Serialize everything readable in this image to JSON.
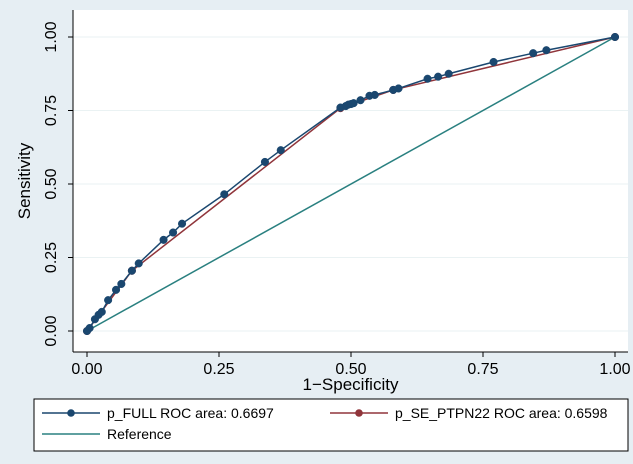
{
  "chart_data": {
    "type": "line",
    "xlabel": "1−Specificity",
    "ylabel": "Sensitivity",
    "xlim": [
      0,
      1
    ],
    "ylim": [
      0,
      1
    ],
    "x_ticks": [
      "0.00",
      "0.25",
      "0.50",
      "0.75",
      "1.00"
    ],
    "y_ticks": [
      "0.00",
      "0.25",
      "0.50",
      "0.75",
      "1.00"
    ],
    "grid": "horizontal",
    "legend_position": "bottom",
    "series": [
      {
        "name": "p_FULL ROC area: 0.6697",
        "color": "#1a476f",
        "marker": "circle",
        "points": [
          [
            0.0,
            0.0
          ],
          [
            0.005,
            0.01
          ],
          [
            0.015,
            0.04
          ],
          [
            0.022,
            0.055
          ],
          [
            0.028,
            0.065
          ],
          [
            0.04,
            0.105
          ],
          [
            0.055,
            0.14
          ],
          [
            0.065,
            0.16
          ],
          [
            0.085,
            0.205
          ],
          [
            0.098,
            0.23
          ],
          [
            0.145,
            0.31
          ],
          [
            0.163,
            0.335
          ],
          [
            0.18,
            0.365
          ],
          [
            0.26,
            0.465
          ],
          [
            0.337,
            0.575
          ],
          [
            0.367,
            0.615
          ],
          [
            0.48,
            0.76
          ],
          [
            0.49,
            0.765
          ],
          [
            0.495,
            0.77
          ],
          [
            0.5,
            0.772
          ],
          [
            0.505,
            0.775
          ],
          [
            0.518,
            0.785
          ],
          [
            0.535,
            0.8
          ],
          [
            0.545,
            0.803
          ],
          [
            0.58,
            0.82
          ],
          [
            0.59,
            0.825
          ],
          [
            0.645,
            0.858
          ],
          [
            0.665,
            0.865
          ],
          [
            0.685,
            0.875
          ],
          [
            0.77,
            0.915
          ],
          [
            0.845,
            0.945
          ],
          [
            0.87,
            0.955
          ],
          [
            1.0,
            1.0
          ]
        ]
      },
      {
        "name": "p_SE_PTPN22 ROC area: 0.6598",
        "color": "#90353b",
        "marker": "circle",
        "points": [
          [
            0.0,
            0.0
          ],
          [
            0.085,
            0.205
          ],
          [
            0.48,
            0.758
          ],
          [
            0.58,
            0.82
          ],
          [
            1.0,
            1.0
          ]
        ]
      },
      {
        "name": "Reference",
        "color": "#2a8080",
        "marker": "none",
        "points": [
          [
            0,
            0
          ],
          [
            1,
            1
          ]
        ]
      }
    ]
  }
}
